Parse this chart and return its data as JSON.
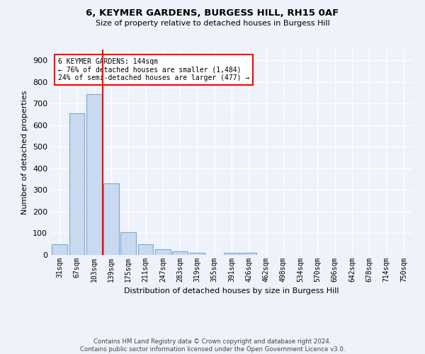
{
  "title": "6, KEYMER GARDENS, BURGESS HILL, RH15 0AF",
  "subtitle": "Size of property relative to detached houses in Burgess Hill",
  "xlabel": "Distribution of detached houses by size in Burgess Hill",
  "ylabel": "Number of detached properties",
  "footer_line1": "Contains HM Land Registry data © Crown copyright and database right 2024.",
  "footer_line2": "Contains public sector information licensed under the Open Government Licence v3.0.",
  "categories": [
    "31sqm",
    "67sqm",
    "103sqm",
    "139sqm",
    "175sqm",
    "211sqm",
    "247sqm",
    "283sqm",
    "319sqm",
    "355sqm",
    "391sqm",
    "426sqm",
    "462sqm",
    "498sqm",
    "534sqm",
    "570sqm",
    "606sqm",
    "642sqm",
    "678sqm",
    "714sqm",
    "750sqm"
  ],
  "values": [
    50,
    655,
    745,
    330,
    105,
    50,
    25,
    15,
    10,
    0,
    10,
    10,
    0,
    0,
    0,
    0,
    0,
    0,
    0,
    0,
    0
  ],
  "bar_color": "#c9d9f0",
  "bar_edge_color": "#7aa8d4",
  "bar_edge_width": 0.8,
  "red_line_index": 3,
  "annotation_text_line1": "6 KEYMER GARDENS: 144sqm",
  "annotation_text_line2": "← 76% of detached houses are smaller (1,484)",
  "annotation_text_line3": "24% of semi-detached houses are larger (477) →",
  "ylim": [
    0,
    950
  ],
  "yticks": [
    0,
    100,
    200,
    300,
    400,
    500,
    600,
    700,
    800,
    900
  ],
  "background_color": "#eef2fb",
  "grid_color": "#ffffff",
  "bar_width": 0.9
}
